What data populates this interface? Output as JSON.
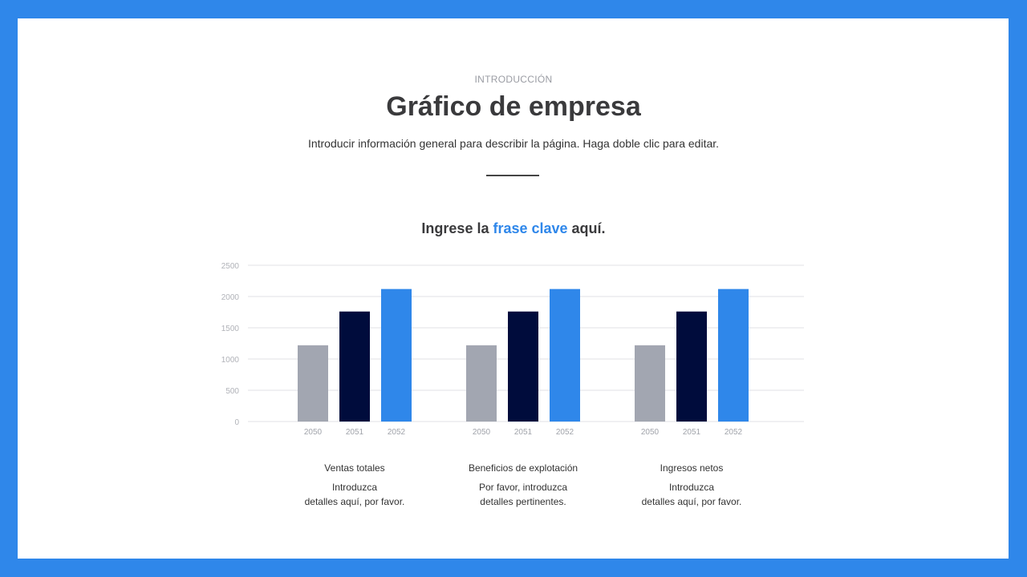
{
  "header": {
    "eyebrow": "INTRODUCCIÓN",
    "title": "Gráfico de empresa",
    "subtitle": "Introducir información general para describir la página. Haga doble clic para editar.",
    "keyphrase_pre": "Ingrese la ",
    "keyphrase_highlight": "frase clave",
    "keyphrase_post": " aquí."
  },
  "colors": {
    "frame": "#2f87ea",
    "series": [
      "#a2a6b1",
      "#000c3c",
      "#2f87ea"
    ]
  },
  "chart_data": {
    "type": "bar",
    "categories": [
      "Ventas totales",
      "Beneficios de explotación",
      "Ingresos netos"
    ],
    "series": [
      {
        "name": "2050",
        "values": [
          1220,
          1220,
          1220
        ]
      },
      {
        "name": "2051",
        "values": [
          1760,
          1760,
          1760
        ]
      },
      {
        "name": "2052",
        "values": [
          2120,
          2120,
          2120
        ]
      }
    ],
    "yticks": [
      "0",
      "500",
      "1000",
      "1500",
      "2000",
      "2500"
    ],
    "ylim": [
      0,
      2500
    ],
    "grid": true
  },
  "captions": [
    {
      "heading": "Ventas totales",
      "lines": [
        "Introduzca",
        "detalles aquí, por favor."
      ]
    },
    {
      "heading": "Beneficios de explotación",
      "lines": [
        "Por favor, introduzca",
        "detalles pertinentes."
      ]
    },
    {
      "heading": "Ingresos netos",
      "lines": [
        "Introduzca",
        "detalles aquí, por favor."
      ]
    }
  ]
}
